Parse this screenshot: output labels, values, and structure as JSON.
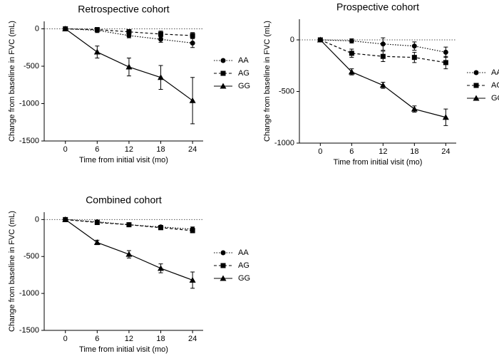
{
  "chart_data": [
    {
      "type": "line",
      "title": "Retrospective cohort",
      "x_label": "Time from initial visit (mo)",
      "y_label": "Change from baseline in FVC (mL)",
      "x": [
        0,
        6,
        12,
        18,
        24
      ],
      "xticks": [
        0,
        6,
        12,
        18,
        24
      ],
      "xlim": [
        -4,
        26
      ],
      "ylim": [
        -1500,
        100
      ],
      "yticks": [
        -1500,
        -1000,
        -500,
        0
      ],
      "zero_line": true,
      "series": [
        {
          "name": "AA",
          "color": "#000000",
          "line_style": "dotted",
          "marker": "circle",
          "values": [
            0,
            -20,
            -90,
            -140,
            -190
          ],
          "errors": [
            null,
            30,
            30,
            40,
            60
          ]
        },
        {
          "name": "AG",
          "color": "#000000",
          "line_style": "dashed",
          "marker": "square",
          "values": [
            0,
            -10,
            -40,
            -70,
            -90
          ],
          "errors": [
            null,
            20,
            30,
            40,
            40
          ]
        },
        {
          "name": "GG",
          "color": "#000000",
          "line_style": "solid",
          "marker": "triangle",
          "values": [
            0,
            -310,
            -510,
            -650,
            -960
          ],
          "errors": [
            null,
            80,
            120,
            160,
            310
          ]
        }
      ]
    },
    {
      "type": "line",
      "title": "Prospective cohort",
      "x_label": "Time from initial visit (mo)",
      "y_label": "Change from baseline in FVC (mL)",
      "x": [
        0,
        6,
        12,
        18,
        24
      ],
      "xticks": [
        0,
        6,
        12,
        18,
        24
      ],
      "xlim": [
        -4,
        26
      ],
      "ylim": [
        -1000,
        200
      ],
      "yticks": [
        -1000,
        -500,
        0
      ],
      "zero_line": true,
      "series": [
        {
          "name": "AA",
          "color": "#000000",
          "line_style": "dotted",
          "marker": "circle",
          "values": [
            0,
            -10,
            -40,
            -60,
            -120
          ],
          "errors": [
            null,
            20,
            60,
            40,
            50
          ]
        },
        {
          "name": "AG",
          "color": "#000000",
          "line_style": "dashed",
          "marker": "square",
          "values": [
            0,
            -130,
            -160,
            -170,
            -220
          ],
          "errors": [
            null,
            40,
            50,
            50,
            60
          ]
        },
        {
          "name": "GG",
          "color": "#000000",
          "line_style": "solid",
          "marker": "triangle",
          "values": [
            0,
            -310,
            -440,
            -670,
            -750
          ],
          "errors": [
            null,
            30,
            30,
            30,
            80
          ]
        }
      ]
    },
    {
      "type": "line",
      "title": "Combined cohort",
      "x_label": "Time from initial visit (mo)",
      "y_label": "Change from baseline in FVC (mL)",
      "x": [
        0,
        6,
        12,
        18,
        24
      ],
      "xticks": [
        0,
        6,
        12,
        18,
        24
      ],
      "xlim": [
        -4,
        26
      ],
      "ylim": [
        -1500,
        100
      ],
      "yticks": [
        -1500,
        -1000,
        -500,
        0
      ],
      "zero_line": true,
      "series": [
        {
          "name": "AA",
          "color": "#000000",
          "line_style": "dotted",
          "marker": "circle",
          "values": [
            0,
            -30,
            -70,
            -100,
            -130
          ],
          "errors": [
            null,
            20,
            20,
            20,
            30
          ]
        },
        {
          "name": "AG",
          "color": "#000000",
          "line_style": "dashed",
          "marker": "square",
          "values": [
            0,
            -40,
            -70,
            -110,
            -150
          ],
          "errors": [
            null,
            20,
            20,
            20,
            30
          ]
        },
        {
          "name": "GG",
          "color": "#000000",
          "line_style": "solid",
          "marker": "triangle",
          "values": [
            0,
            -310,
            -470,
            -660,
            -820
          ],
          "errors": [
            null,
            30,
            50,
            60,
            110
          ]
        }
      ]
    }
  ]
}
